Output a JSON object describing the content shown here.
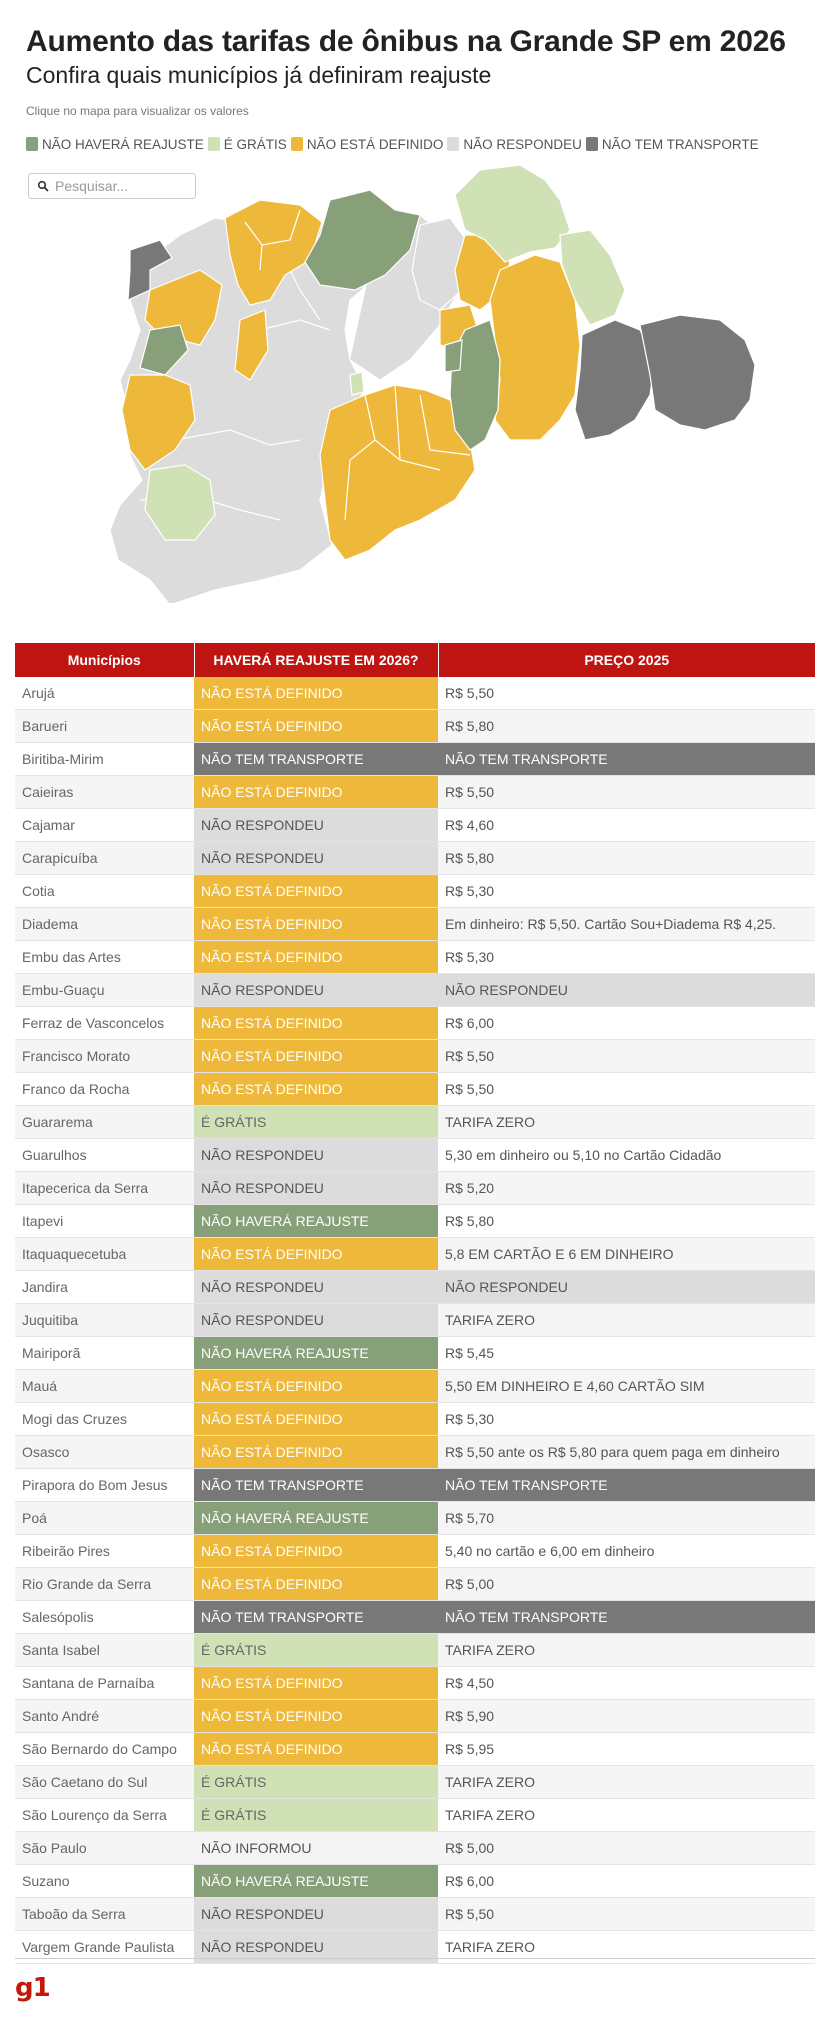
{
  "header": {
    "title": "Aumento das tarifas de ônibus na Grande SP em 2026",
    "subtitle": "Confira quais municípios já definiram reajuste",
    "hint": "Clique no mapa para visualizar os valores"
  },
  "legend": [
    {
      "label": "NÃO HAVERÁ REAJUSTE",
      "color": "#88a07a"
    },
    {
      "label": "É GRÁTIS",
      "color": "#cfe1b5"
    },
    {
      "label": "NÃO ESTÁ DEFINIDO",
      "color": "#eeb93b"
    },
    {
      "label": "NÃO RESPONDEU",
      "color": "#dcdcdc"
    },
    {
      "label": "NÃO TEM TRANSPORTE",
      "color": "#787878"
    }
  ],
  "search": {
    "placeholder": "Pesquisar..."
  },
  "colors": {
    "nh": "#88a07a",
    "gr": "#cfe1b5",
    "def": "#eeb93b",
    "nr": "#dcdcdc",
    "tr": "#787878",
    "header": "#bf1512"
  },
  "table": {
    "headers": [
      "Municípios",
      "HAVERÁ REAJUSTE EM 2026?",
      "PREÇO 2025"
    ],
    "rows": [
      {
        "mun": "Arujá",
        "status": "NÃO ESTÁ DEFINIDO",
        "s": "def",
        "price": "R$ 5,50"
      },
      {
        "mun": "Barueri",
        "status": "NÃO ESTÁ DEFINIDO",
        "s": "def",
        "price": "R$ 5,80"
      },
      {
        "mun": "Biritiba-Mirim",
        "status": "NÃO TEM TRANSPORTE",
        "s": "tr",
        "price": "NÃO TEM TRANSPORTE"
      },
      {
        "mun": "Caieiras",
        "status": "NÃO ESTÁ DEFINIDO",
        "s": "def",
        "price": "R$ 5,50"
      },
      {
        "mun": "Cajamar",
        "status": "NÃO RESPONDEU",
        "s": "nr",
        "price": "R$ 4,60"
      },
      {
        "mun": "Carapicuíba",
        "status": "NÃO RESPONDEU",
        "s": "nr",
        "price": "R$ 5,80"
      },
      {
        "mun": "Cotia",
        "status": "NÃO ESTÁ DEFINIDO",
        "s": "def",
        "price": "R$ 5,30"
      },
      {
        "mun": "Diadema",
        "status": "NÃO ESTÁ DEFINIDO",
        "s": "def",
        "price": "Em dinheiro: R$ 5,50. Cartão Sou+Diadema R$ 4,25."
      },
      {
        "mun": "Embu das Artes",
        "status": "NÃO ESTÁ DEFINIDO",
        "s": "def",
        "price": "R$ 5,30"
      },
      {
        "mun": "Embu-Guaçu",
        "status": "NÃO RESPONDEU",
        "s": "nr",
        "price": "NÃO RESPONDEU"
      },
      {
        "mun": "Ferraz de Vasconcelos",
        "status": "NÃO ESTÁ DEFINIDO",
        "s": "def",
        "price": "R$ 6,00"
      },
      {
        "mun": "Francisco Morato",
        "status": "NÃO ESTÁ DEFINIDO",
        "s": "def",
        "price": "R$ 5,50"
      },
      {
        "mun": "Franco da Rocha",
        "status": "NÃO ESTÁ DEFINIDO",
        "s": "def",
        "price": "R$ 5,50"
      },
      {
        "mun": "Guararema",
        "status": "É GRÁTIS",
        "s": "gr",
        "price": "TARIFA ZERO"
      },
      {
        "mun": "Guarulhos",
        "status": "NÃO RESPONDEU",
        "s": "nr",
        "price": "5,30 em dinheiro ou 5,10 no Cartão Cidadão"
      },
      {
        "mun": "Itapecerica da Serra",
        "status": "NÃO RESPONDEU",
        "s": "nr",
        "price": "R$ 5,20"
      },
      {
        "mun": "Itapevi",
        "status": "NÃO HAVERÁ REAJUSTE",
        "s": "nh",
        "price": "R$ 5,80"
      },
      {
        "mun": "Itaquaquecetuba",
        "status": "NÃO ESTÁ DEFINIDO",
        "s": "def",
        "price": "5,8 EM CARTÃO E 6 EM DINHEIRO"
      },
      {
        "mun": "Jandira",
        "status": "NÃO RESPONDEU",
        "s": "nr",
        "price": "NÃO RESPONDEU"
      },
      {
        "mun": "Juquitiba",
        "status": "NÃO RESPONDEU",
        "s": "nr",
        "price": "TARIFA ZERO"
      },
      {
        "mun": "Mairiporã",
        "status": "NÃO HAVERÁ REAJUSTE",
        "s": "nh",
        "price": "R$ 5,45"
      },
      {
        "mun": "Mauá",
        "status": "NÃO ESTÁ DEFINIDO",
        "s": "def",
        "price": "5,50 EM DINHEIRO E 4,60 CARTÃO SIM"
      },
      {
        "mun": "Mogi das Cruzes",
        "status": "NÃO ESTÁ DEFINIDO",
        "s": "def",
        "price": "R$ 5,30"
      },
      {
        "mun": "Osasco",
        "status": "NÃO ESTÁ DEFINIDO",
        "s": "def",
        "price": "R$ 5,50 ante os R$ 5,80 para quem paga em dinheiro"
      },
      {
        "mun": "Pirapora do Bom Jesus",
        "status": "NÃO TEM TRANSPORTE",
        "s": "tr",
        "price": "NÃO TEM TRANSPORTE"
      },
      {
        "mun": "Poá",
        "status": "NÃO HAVERÁ REAJUSTE",
        "s": "nh",
        "price": "R$ 5,70"
      },
      {
        "mun": "Ribeirão Pires",
        "status": "NÃO ESTÁ DEFINIDO",
        "s": "def",
        "price": "5,40 no cartão e 6,00 em dinheiro"
      },
      {
        "mun": "Rio Grande da Serra",
        "status": "NÃO ESTÁ DEFINIDO",
        "s": "def",
        "price": "R$ 5,00"
      },
      {
        "mun": "Salesópolis",
        "status": "NÃO TEM TRANSPORTE",
        "s": "tr",
        "price": "NÃO TEM TRANSPORTE"
      },
      {
        "mun": "Santa Isabel",
        "status": "É GRÁTIS",
        "s": "gr",
        "price": "TARIFA ZERO"
      },
      {
        "mun": "Santana de Parnaíba",
        "status": "NÃO ESTÁ DEFINIDO",
        "s": "def",
        "price": "R$ 4,50"
      },
      {
        "mun": "Santo André",
        "status": "NÃO ESTÁ DEFINIDO",
        "s": "def",
        "price": "R$ 5,90"
      },
      {
        "mun": "São Bernardo do Campo",
        "status": "NÃO ESTÁ DEFINIDO",
        "s": "def",
        "price": "R$ 5,95"
      },
      {
        "mun": "São Caetano do Sul",
        "status": "É GRÁTIS",
        "s": "gr",
        "price": "TARIFA ZERO"
      },
      {
        "mun": "São Lourenço da Serra",
        "status": "É GRÁTIS",
        "s": "gr",
        "price": "TARIFA ZERO"
      },
      {
        "mun": "São Paulo",
        "status": "NÃO INFORMOU",
        "s": "ni",
        "price": "R$ 5,00"
      },
      {
        "mun": "Suzano",
        "status": "NÃO HAVERÁ REAJUSTE",
        "s": "nh",
        "price": "R$ 6,00"
      },
      {
        "mun": "Taboão da Serra",
        "status": "NÃO RESPONDEU",
        "s": "nr",
        "price": "R$ 5,50"
      },
      {
        "mun": "Vargem Grande Paulista",
        "status": "NÃO RESPONDEU",
        "s": "nr",
        "price": "TARIFA ZERO"
      }
    ]
  },
  "footer": {
    "logo": "g1"
  }
}
